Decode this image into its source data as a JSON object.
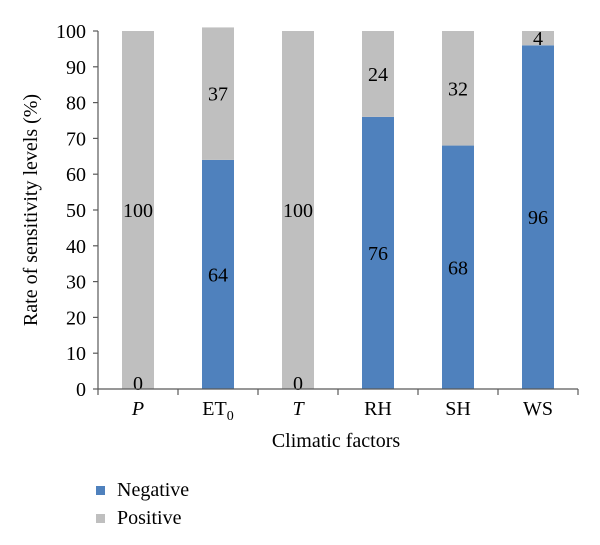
{
  "chart_data": {
    "type": "bar",
    "stacked": true,
    "categories": [
      "P",
      "ET0",
      "T",
      "RH",
      "SH",
      "WS"
    ],
    "category_labels": [
      {
        "main": "P",
        "sub": "",
        "italic": true
      },
      {
        "main": "ET",
        "sub": "0",
        "italic": false
      },
      {
        "main": "T",
        "sub": "",
        "italic": true
      },
      {
        "main": "RH",
        "sub": "",
        "italic": false
      },
      {
        "main": "SH",
        "sub": "",
        "italic": false
      },
      {
        "main": "WS",
        "sub": "",
        "italic": false
      }
    ],
    "series": [
      {
        "name": "Negative",
        "color": "#4f81bd",
        "values": [
          0,
          64,
          0,
          76,
          68,
          96
        ]
      },
      {
        "name": "Positive",
        "color": "#bfbfbf",
        "values": [
          100,
          37,
          100,
          24,
          32,
          4
        ]
      }
    ],
    "xlabel": "Climatic factors",
    "ylabel": "Rate of sensitivity levels (%)",
    "ylim": [
      0,
      100
    ],
    "yticks": [
      0,
      10,
      20,
      30,
      40,
      50,
      60,
      70,
      80,
      90,
      100
    ],
    "grid": false,
    "legend_position": "bottom-left"
  }
}
